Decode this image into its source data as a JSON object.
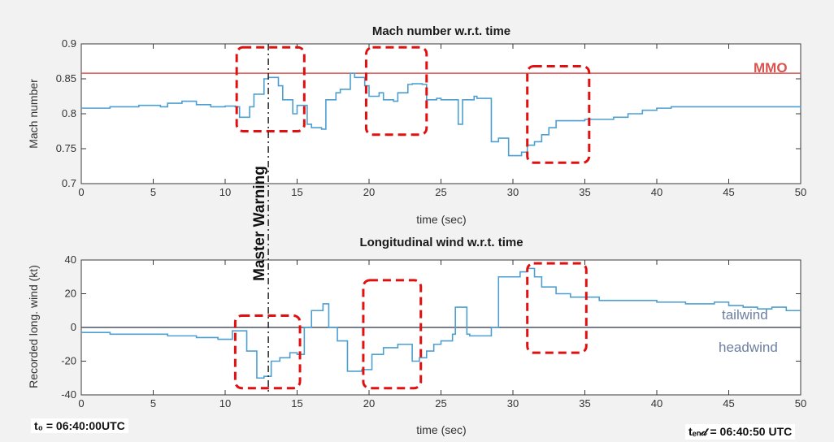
{
  "chart_data": [
    {
      "type": "line",
      "title": "Mach number w.r.t. time",
      "xlabel": "time (sec)",
      "ylabel": "Mach number",
      "xlim": [
        0,
        50
      ],
      "ylim": [
        0.7,
        0.9
      ],
      "xticks": [
        "0",
        "5",
        "10",
        "15",
        "20",
        "25",
        "30",
        "35",
        "40",
        "45",
        "50"
      ],
      "yticks": [
        "0.7",
        "0.75",
        "0.8",
        "0.85",
        "0.9"
      ],
      "grid": false,
      "step": true,
      "line_color": "#4d9fd1",
      "series": [
        {
          "x": [
            0,
            2,
            4,
            5.5,
            6,
            7,
            8,
            9,
            10,
            10.7,
            11,
            11.7,
            12,
            12.7,
            13,
            13.7,
            14,
            14.7,
            15,
            15.7,
            16,
            16.7,
            17,
            17.7,
            18,
            18.7,
            19,
            19.7,
            20,
            20.7,
            21,
            21.7,
            22,
            22.7,
            23,
            23.7,
            24,
            24.7,
            25,
            26.2,
            26.5,
            27.3,
            27.5,
            28.5,
            29,
            29.7,
            30,
            30.6,
            31,
            31.5,
            32,
            32.5,
            33,
            35,
            37,
            38,
            39,
            40,
            41,
            45,
            50
          ],
          "y": [
            0.808,
            0.81,
            0.812,
            0.81,
            0.815,
            0.818,
            0.813,
            0.81,
            0.811,
            0.81,
            0.795,
            0.81,
            0.828,
            0.85,
            0.852,
            0.84,
            0.82,
            0.8,
            0.812,
            0.785,
            0.78,
            0.778,
            0.82,
            0.83,
            0.835,
            0.858,
            0.852,
            0.84,
            0.825,
            0.83,
            0.82,
            0.818,
            0.83,
            0.842,
            0.843,
            0.842,
            0.82,
            0.822,
            0.82,
            0.785,
            0.82,
            0.825,
            0.822,
            0.76,
            0.765,
            0.74,
            0.74,
            0.745,
            0.755,
            0.76,
            0.77,
            0.78,
            0.79,
            0.792,
            0.795,
            0.8,
            0.805,
            0.808,
            0.81,
            0.81,
            0.808
          ]
        }
      ],
      "reference_line": {
        "label": "MMO",
        "y": 0.858,
        "color": "#d9534f"
      },
      "annotation_vertical": {
        "label": "Master Warning",
        "x": 13
      }
    },
    {
      "type": "line",
      "title": "Longitudinal wind w.r.t. time",
      "xlabel": "time (sec)",
      "ylabel": "Recorded long. wind (kt)",
      "xlim": [
        0,
        50
      ],
      "ylim": [
        -40,
        40
      ],
      "xticks": [
        "0",
        "5",
        "10",
        "15",
        "20",
        "25",
        "30",
        "35",
        "40",
        "45",
        "50"
      ],
      "yticks": [
        "-40",
        "-20",
        "0",
        "20",
        "40"
      ],
      "grid": false,
      "step": true,
      "line_color": "#4d9fd1",
      "series": [
        {
          "x": [
            0,
            2,
            4,
            6,
            8,
            9.5,
            10.5,
            11.5,
            12.2,
            12.7,
            13.2,
            13.8,
            14.5,
            15,
            15.5,
            16,
            16.8,
            17.2,
            17.8,
            18.5,
            19.5,
            20.2,
            21,
            22,
            23,
            23.5,
            24,
            24.5,
            25,
            25.8,
            26,
            26.8,
            27,
            28,
            28.5,
            29,
            30,
            30.5,
            31,
            31.5,
            32,
            33,
            34,
            35,
            36,
            38,
            40,
            42,
            44,
            45,
            46,
            47,
            48,
            49,
            50
          ],
          "y": [
            -3,
            -4,
            -4,
            -5,
            -6,
            -7,
            -2,
            -14,
            -30,
            -29,
            -20,
            -18,
            -15,
            -16,
            0,
            10,
            14,
            0,
            -8,
            -26,
            -25,
            -16,
            -12,
            -10,
            -20,
            -18,
            -14,
            -10,
            -8,
            -4,
            12,
            -4,
            -5,
            -5,
            0,
            30,
            30,
            33,
            35,
            30,
            24,
            20,
            18,
            18,
            16,
            16,
            15,
            14,
            15,
            13,
            12,
            11,
            12,
            10,
            10
          ]
        }
      ],
      "zero_line": true,
      "region_labels": [
        "tailwind",
        "headwind"
      ]
    }
  ],
  "labels": {
    "mmo": "MMO",
    "master_warning": "Master Warning",
    "tailwind": "tailwind",
    "headwind": "headwind",
    "t0_text": "t₀ = 06:40:00UTC",
    "tend_text": "tₑₙ𝒹 = 06:40:50 UTC"
  },
  "colors": {
    "series": "#4d9fd1",
    "mmo": "#d9534f",
    "highlight_box": "#e01010",
    "zero_line": "#4a5568",
    "region_text": "#6c7fa1"
  },
  "highlight_boxes": [
    {
      "panel": 0,
      "x0": 10.8,
      "x1": 15.5,
      "y0": 0.895,
      "y1": 0.775
    },
    {
      "panel": 0,
      "x0": 19.8,
      "x1": 24.0,
      "y0": 0.895,
      "y1": 0.77
    },
    {
      "panel": 0,
      "x0": 31.0,
      "x1": 35.3,
      "y0": 0.868,
      "y1": 0.73
    },
    {
      "panel": 1,
      "x0": 10.7,
      "x1": 15.2,
      "y0": 7,
      "y1": -36
    },
    {
      "panel": 1,
      "x0": 19.6,
      "x1": 23.6,
      "y0": 28,
      "y1": -36
    },
    {
      "panel": 1,
      "x0": 31.0,
      "x1": 35.1,
      "y0": 38,
      "y1": -15
    }
  ]
}
